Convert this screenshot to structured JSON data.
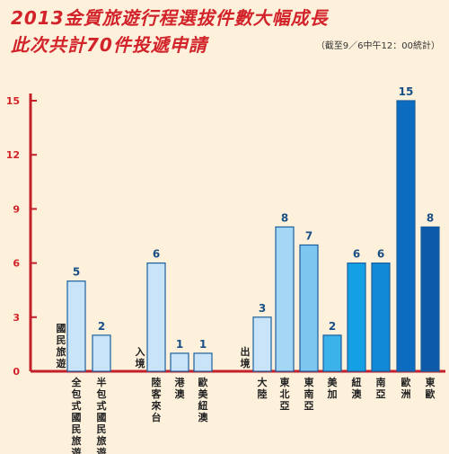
{
  "title": "2013金質旅遊行程選拔件數大幅成長",
  "subtitle": "此次共計70件投遞申請",
  "note": "（截至9／6中午12：00統計）",
  "colors": {
    "axis": "#c3202a",
    "label": "#d2232a",
    "bar_stroke": "#1b5f9e"
  },
  "chart_data": {
    "type": "bar",
    "ylim": [
      0,
      15
    ],
    "yticks": [
      0,
      3,
      6,
      9,
      12,
      15
    ],
    "groups": [
      {
        "label": "國民旅遊",
        "indices": [
          0,
          1
        ]
      },
      {
        "label": "入境",
        "indices": [
          2,
          3,
          4
        ]
      },
      {
        "label": "出境",
        "indices": [
          5,
          6,
          7,
          8,
          9,
          10,
          11,
          12
        ]
      }
    ],
    "bars": [
      {
        "category": "全包式國民旅遊",
        "value": 5,
        "color": "#c9e4f8"
      },
      {
        "category": "半包式國民旅遊",
        "value": 2,
        "color": "#c9e4f8"
      },
      {
        "category": "陸客來台",
        "value": 6,
        "color": "#c9e4f8"
      },
      {
        "category": "港澳",
        "value": 1,
        "color": "#c9e4f8"
      },
      {
        "category": "歐美紐澳",
        "value": 1,
        "color": "#c9e4f8"
      },
      {
        "category": "大陸",
        "value": 3,
        "color": "#c9e4f8"
      },
      {
        "category": "東北亞",
        "value": 8,
        "color": "#a4d6f5"
      },
      {
        "category": "東南亞",
        "value": 7,
        "color": "#7cc6f0"
      },
      {
        "category": "美加",
        "value": 2,
        "color": "#3cb2ea"
      },
      {
        "category": "紐澳",
        "value": 6,
        "color": "#14a0e4"
      },
      {
        "category": "南亞",
        "value": 6,
        "color": "#1289d6"
      },
      {
        "category": "歐洲",
        "value": 15,
        "color": "#0c6cc0"
      },
      {
        "category": "東歐",
        "value": 8,
        "color": "#0c5aa8"
      }
    ]
  }
}
